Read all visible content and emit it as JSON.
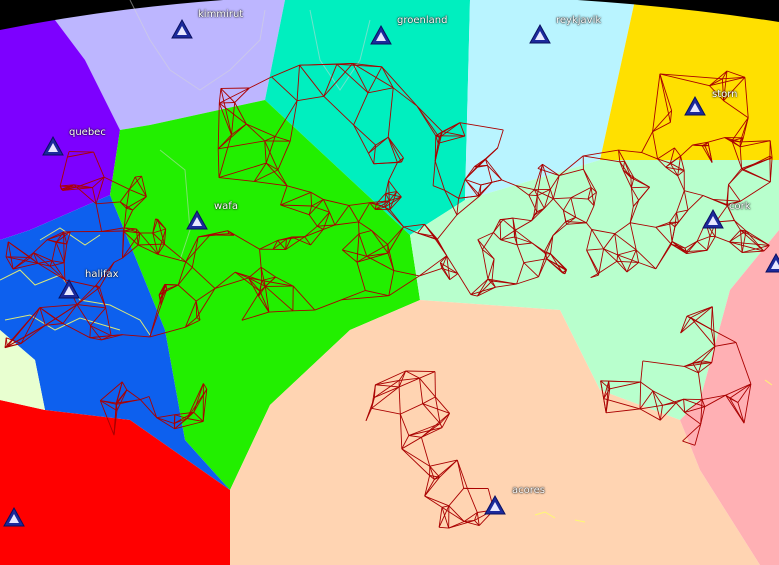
{
  "map": {
    "colors": {
      "network_lines": "#aa0000",
      "station_marker_fill": "#1c2a9c",
      "station_marker_stroke": "#0a1060",
      "label_text": "#ffffff",
      "coast_outline": "#ffff66",
      "background_top": "#000000"
    },
    "regions": [
      {
        "id": "kimmirut",
        "color": "#bdb6ff"
      },
      {
        "id": "groenland",
        "color": "#00efbf"
      },
      {
        "id": "reykjavik",
        "color": "#b9f4ff"
      },
      {
        "id": "storn",
        "color": "#ffe000"
      },
      {
        "id": "quebec",
        "color": "#7d00ff"
      },
      {
        "id": "wafa",
        "color": "#22ef00"
      },
      {
        "id": "cork",
        "color": "#b8ffcd"
      },
      {
        "id": "halifax",
        "color": "#0d60ee"
      },
      {
        "id": "acores",
        "color": "#ffd4b2"
      },
      {
        "id": "east",
        "color": "#ffb0b4"
      },
      {
        "id": "southwest",
        "color": "#ff0000"
      },
      {
        "id": "west-sliver",
        "color": "#e8ffd0"
      }
    ],
    "stations": [
      {
        "id": "kimmirut",
        "label": "kimmirut",
        "icon": "triangle-marker-icon"
      },
      {
        "id": "groenland",
        "label": "groenland",
        "icon": "triangle-marker-icon"
      },
      {
        "id": "reykjavik",
        "label": "reykjavik",
        "icon": "triangle-marker-icon"
      },
      {
        "id": "storn",
        "label": "storn",
        "icon": "triangle-marker-icon"
      },
      {
        "id": "quebec",
        "label": "quebec",
        "icon": "triangle-marker-icon"
      },
      {
        "id": "wafa",
        "label": "wafa",
        "icon": "triangle-marker-icon"
      },
      {
        "id": "cork",
        "label": "cork",
        "icon": "triangle-marker-icon"
      },
      {
        "id": "halifax",
        "label": "halifax",
        "icon": "triangle-marker-icon"
      },
      {
        "id": "acores",
        "label": "acores",
        "icon": "triangle-marker-icon"
      },
      {
        "id": "edge-east",
        "label": "",
        "icon": "triangle-marker-icon"
      },
      {
        "id": "edge-southwest",
        "label": "",
        "icon": "triangle-marker-icon"
      }
    ]
  }
}
